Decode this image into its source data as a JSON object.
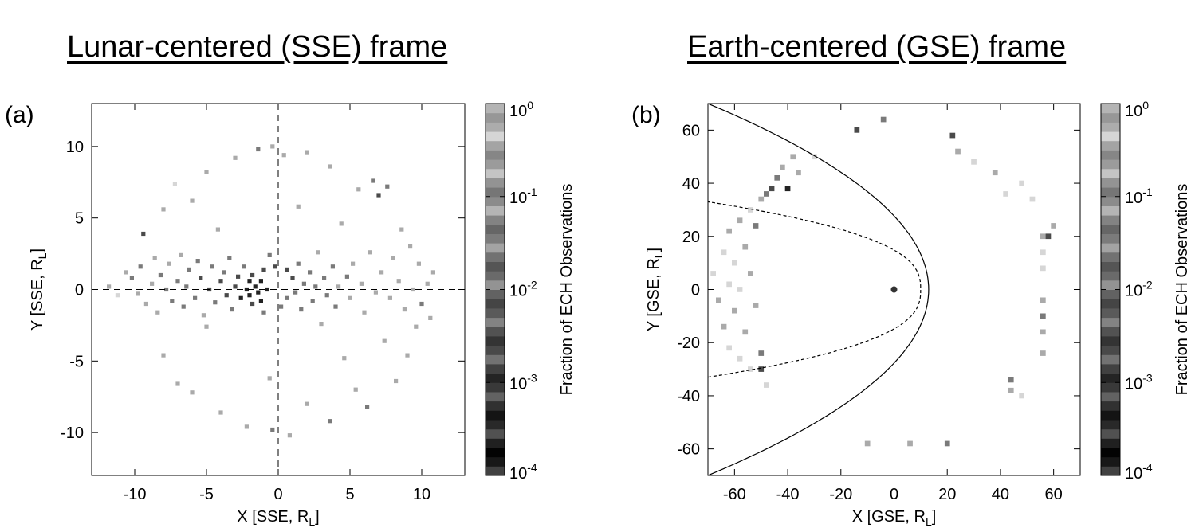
{
  "panels": {
    "a": {
      "title": "Lunar-centered (SSE) frame",
      "label": "(a)"
    },
    "b": {
      "title": "Earth-centered (GSE) frame",
      "label": "(b)"
    }
  },
  "chart_data": [
    {
      "type": "heatmap",
      "title": "Lunar-centered (SSE) frame",
      "panel_label": "(a)",
      "xlabel": "X [SSE, R",
      "xlabel_sub": "L",
      "ylabel": "Y [SSE, R",
      "ylabel_sub": "L",
      "xlim": [
        -13,
        13
      ],
      "ylim": [
        -13,
        13
      ],
      "xticks": [
        -10,
        -5,
        0,
        5,
        10
      ],
      "yticks": [
        -10,
        -5,
        0,
        5,
        10
      ],
      "dashed_axes_at_zero": true,
      "colorbar": {
        "label": "Fraction of ECH Observations",
        "scale": "log",
        "range": [
          0.0001,
          1
        ],
        "tick_exponents": [
          "0",
          "-1",
          "-2",
          "-3",
          "-4"
        ],
        "colormap": "grayscale-banded"
      },
      "cells": [
        [
          -11.8,
          0.2,
          2
        ],
        [
          -11.2,
          -0.4,
          1
        ],
        [
          -10.6,
          1.2,
          2
        ],
        [
          -10.2,
          0.8,
          3
        ],
        [
          -9.8,
          -0.3,
          2
        ],
        [
          -9.6,
          1.6,
          3
        ],
        [
          -9.4,
          3.9,
          4
        ],
        [
          -9.2,
          -1.0,
          2
        ],
        [
          -8.8,
          0.4,
          2
        ],
        [
          -8.6,
          2.2,
          2
        ],
        [
          -8.4,
          -1.6,
          2
        ],
        [
          -8.2,
          1.0,
          3
        ],
        [
          -8.0,
          5.6,
          2
        ],
        [
          -8.0,
          -4.6,
          2
        ],
        [
          -7.8,
          0.0,
          3
        ],
        [
          -7.6,
          1.8,
          2
        ],
        [
          -7.4,
          -0.8,
          3
        ],
        [
          -7.2,
          7.4,
          1
        ],
        [
          -7.0,
          -6.6,
          2
        ],
        [
          -7.0,
          0.6,
          3
        ],
        [
          -6.8,
          2.4,
          2
        ],
        [
          -6.6,
          -1.2,
          3
        ],
        [
          -6.4,
          0.2,
          3
        ],
        [
          -6.2,
          1.4,
          3
        ],
        [
          -6.0,
          -7.2,
          2
        ],
        [
          -6.0,
          6.2,
          2
        ],
        [
          -5.8,
          -0.6,
          3
        ],
        [
          -5.6,
          2.0,
          3
        ],
        [
          -5.4,
          0.8,
          4
        ],
        [
          -5.2,
          -1.8,
          2
        ],
        [
          -5.0,
          8.2,
          2
        ],
        [
          -5.0,
          -2.6,
          2
        ],
        [
          -4.8,
          0.0,
          4
        ],
        [
          -4.6,
          1.6,
          3
        ],
        [
          -4.4,
          -0.9,
          3
        ],
        [
          -4.2,
          4.2,
          2
        ],
        [
          -4.0,
          -8.6,
          2
        ],
        [
          -4.0,
          0.6,
          4
        ],
        [
          -3.8,
          1.2,
          3
        ],
        [
          -3.6,
          -0.4,
          4
        ],
        [
          -3.4,
          2.2,
          3
        ],
        [
          -3.2,
          -1.4,
          3
        ],
        [
          -3.0,
          9.2,
          2
        ],
        [
          -3.0,
          0.2,
          4
        ],
        [
          -2.8,
          0.9,
          4
        ],
        [
          -2.6,
          -0.6,
          5
        ],
        [
          -2.4,
          1.6,
          3
        ],
        [
          -2.2,
          -9.6,
          2
        ],
        [
          -2.2,
          0.0,
          5
        ],
        [
          -2.0,
          0.6,
          5
        ],
        [
          -2.0,
          -0.4,
          5
        ],
        [
          -1.8,
          -1.0,
          4
        ],
        [
          -1.8,
          1.0,
          4
        ],
        [
          -1.6,
          0.2,
          5
        ],
        [
          -1.4,
          -0.2,
          5
        ],
        [
          -1.4,
          9.8,
          3
        ],
        [
          -1.2,
          0.6,
          5
        ],
        [
          -1.2,
          -0.8,
          5
        ],
        [
          -1.0,
          1.4,
          4
        ],
        [
          -1.0,
          -1.6,
          3
        ],
        [
          -0.8,
          0.0,
          5
        ],
        [
          -0.6,
          -6.2,
          2
        ],
        [
          -0.6,
          2.4,
          3
        ],
        [
          -0.4,
          -9.8,
          3
        ],
        [
          -0.4,
          10.0,
          2
        ],
        [
          -0.2,
          1.6,
          4
        ],
        [
          0.2,
          -1.2,
          3
        ],
        [
          0.4,
          9.4,
          2
        ],
        [
          0.6,
          1.4,
          4
        ],
        [
          0.6,
          -0.6,
          3
        ],
        [
          0.8,
          -10.2,
          2
        ],
        [
          1.0,
          0.8,
          4
        ],
        [
          1.2,
          -0.2,
          3
        ],
        [
          1.4,
          1.8,
          3
        ],
        [
          1.4,
          5.8,
          2
        ],
        [
          1.6,
          -1.4,
          3
        ],
        [
          1.8,
          0.4,
          3
        ],
        [
          2.0,
          9.6,
          2
        ],
        [
          2.0,
          -8.0,
          2
        ],
        [
          2.2,
          1.2,
          3
        ],
        [
          2.4,
          -0.8,
          3
        ],
        [
          2.6,
          0.2,
          3
        ],
        [
          2.8,
          2.6,
          2
        ],
        [
          3.0,
          -2.4,
          2
        ],
        [
          3.2,
          0.8,
          3
        ],
        [
          3.4,
          -0.4,
          3
        ],
        [
          3.6,
          8.6,
          2
        ],
        [
          3.6,
          -9.2,
          3
        ],
        [
          3.8,
          1.6,
          3
        ],
        [
          4.0,
          -1.2,
          3
        ],
        [
          4.2,
          0.2,
          2
        ],
        [
          4.4,
          4.6,
          2
        ],
        [
          4.6,
          -4.8,
          2
        ],
        [
          4.8,
          0.9,
          3
        ],
        [
          5.0,
          -0.6,
          2
        ],
        [
          5.2,
          1.8,
          2
        ],
        [
          5.4,
          -7.0,
          2
        ],
        [
          5.6,
          7.0,
          2
        ],
        [
          5.8,
          0.4,
          2
        ],
        [
          6.0,
          -1.6,
          2
        ],
        [
          6.2,
          -8.2,
          3
        ],
        [
          6.4,
          2.6,
          2
        ],
        [
          6.6,
          7.6,
          3
        ],
        [
          6.8,
          -0.2,
          2
        ],
        [
          7.0,
          6.6,
          4
        ],
        [
          7.2,
          1.2,
          2
        ],
        [
          7.4,
          -3.6,
          2
        ],
        [
          7.6,
          7.2,
          3
        ],
        [
          7.8,
          -0.6,
          2
        ],
        [
          8.0,
          2.2,
          2
        ],
        [
          8.2,
          -6.4,
          2
        ],
        [
          8.4,
          0.6,
          2
        ],
        [
          8.6,
          4.2,
          2
        ],
        [
          8.8,
          -1.4,
          2
        ],
        [
          9.0,
          -4.6,
          2
        ],
        [
          9.2,
          3.0,
          2
        ],
        [
          9.4,
          0.0,
          2
        ],
        [
          9.6,
          -2.6,
          2
        ],
        [
          9.8,
          1.8,
          2
        ],
        [
          10.0,
          -1.0,
          3
        ],
        [
          10.4,
          0.4,
          2
        ],
        [
          10.6,
          -2.0,
          2
        ],
        [
          10.8,
          1.2,
          2
        ]
      ]
    },
    {
      "type": "heatmap",
      "title": "Earth-centered (GSE) frame",
      "panel_label": "(b)",
      "xlabel": "X [GSE, R",
      "xlabel_sub": "L",
      "ylabel": "Y [GSE, R",
      "ylabel_sub": "L",
      "xlim": [
        -70,
        70
      ],
      "ylim": [
        -70,
        70
      ],
      "xticks": [
        -60,
        -40,
        -20,
        0,
        20,
        40,
        60
      ],
      "yticks": [
        -60,
        -40,
        -20,
        0,
        20,
        40,
        60
      ],
      "earth_marker": [
        0,
        0
      ],
      "bow_shock": {
        "style": "solid",
        "nose_x": 13
      },
      "magnetopause": {
        "style": "dotted",
        "nose_x": 10
      },
      "colorbar": {
        "label": "Fraction of ECH Observations",
        "scale": "log",
        "range": [
          0.0001,
          1
        ],
        "tick_exponents": [
          "0",
          "-1",
          "-2",
          "-3",
          "-4"
        ],
        "colormap": "grayscale-banded"
      },
      "cells": [
        [
          -68,
          6,
          1
        ],
        [
          -66,
          -4,
          2
        ],
        [
          -64,
          14,
          1
        ],
        [
          -64,
          -14,
          2
        ],
        [
          -62,
          2,
          1
        ],
        [
          -62,
          22,
          2
        ],
        [
          -62,
          -22,
          1
        ],
        [
          -60,
          -8,
          2
        ],
        [
          -60,
          10,
          1
        ],
        [
          -58,
          26,
          2
        ],
        [
          -58,
          -26,
          1
        ],
        [
          -58,
          0,
          1
        ],
        [
          -56,
          16,
          2
        ],
        [
          -56,
          -16,
          2
        ],
        [
          -54,
          30,
          1
        ],
        [
          -54,
          -30,
          1
        ],
        [
          -54,
          6,
          2
        ],
        [
          -52,
          -6,
          2
        ],
        [
          -52,
          24,
          3
        ],
        [
          -50,
          -24,
          3
        ],
        [
          -50,
          34,
          2
        ],
        [
          -50,
          -30,
          4
        ],
        [
          -48,
          36,
          3
        ],
        [
          -48,
          -36,
          1
        ],
        [
          -46,
          38,
          4
        ],
        [
          -44,
          42,
          3
        ],
        [
          -42,
          46,
          2
        ],
        [
          -40,
          38,
          5
        ],
        [
          -38,
          50,
          2
        ],
        [
          -36,
          44,
          2
        ],
        [
          -30,
          50,
          1
        ],
        [
          -14,
          60,
          4
        ],
        [
          -4,
          64,
          3
        ],
        [
          -10,
          -58,
          2
        ],
        [
          6,
          -58,
          2
        ],
        [
          20,
          -58,
          3
        ],
        [
          22,
          58,
          4
        ],
        [
          24,
          52,
          2
        ],
        [
          30,
          48,
          1
        ],
        [
          38,
          44,
          2
        ],
        [
          42,
          36,
          1
        ],
        [
          44,
          -34,
          3
        ],
        [
          44,
          -38,
          2
        ],
        [
          48,
          40,
          1
        ],
        [
          48,
          -40,
          1
        ],
        [
          52,
          34,
          1
        ],
        [
          56,
          -4,
          2
        ],
        [
          56,
          -10,
          3
        ],
        [
          56,
          -16,
          2
        ],
        [
          56,
          -24,
          2
        ],
        [
          56,
          14,
          1
        ],
        [
          56,
          20,
          2
        ],
        [
          56,
          8,
          1
        ],
        [
          58,
          20,
          4
        ],
        [
          60,
          24,
          2
        ]
      ]
    }
  ]
}
